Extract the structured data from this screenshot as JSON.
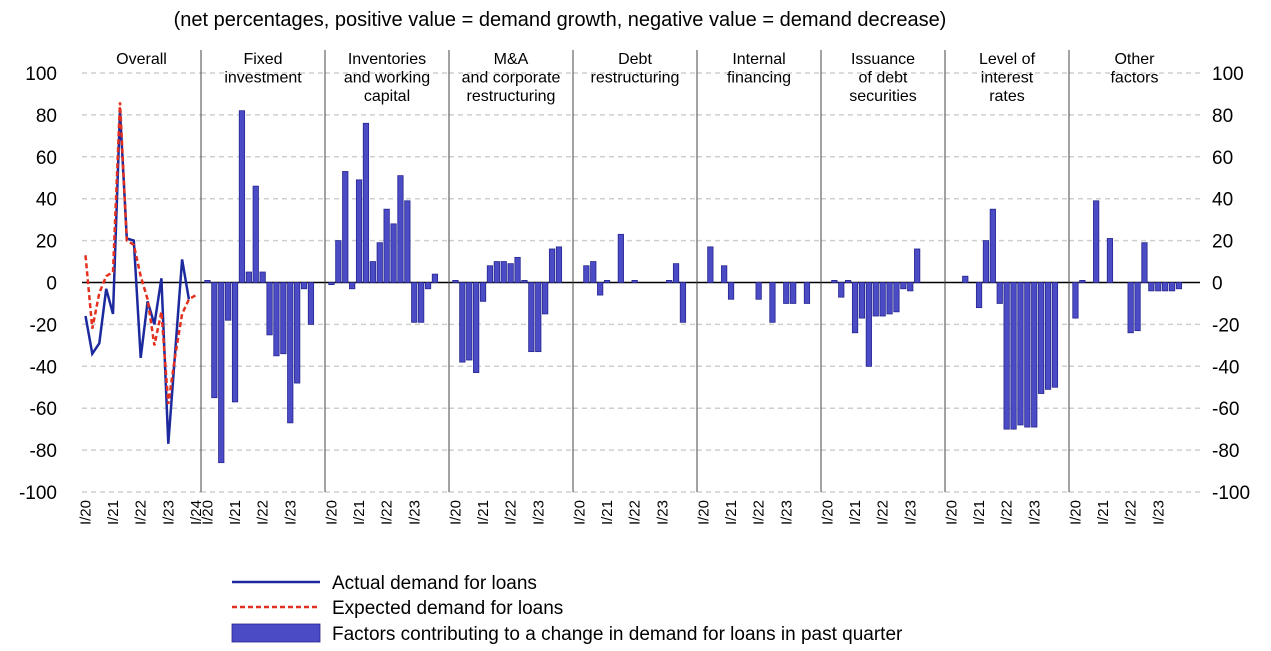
{
  "subtitle": "(net percentages, positive value = demand growth, negative value = demand decrease)",
  "legend_bar": {
    "name": "Factors contributing to a change in demand for loans in past quarter",
    "color": "#4b4bc6"
  },
  "chart_data": [
    {
      "type": "line",
      "title": [
        "Overall"
      ],
      "categories": [
        "I/20",
        null,
        null,
        null,
        "I/21",
        null,
        null,
        null,
        "I/22",
        null,
        null,
        null,
        "I/23",
        null,
        null,
        null,
        "I/24"
      ],
      "series": [
        {
          "name": "Actual demand for loans",
          "color": "#1c2a9e",
          "style": "solid",
          "values": [
            -16,
            -34,
            -29,
            -3,
            -15,
            82,
            21,
            20,
            -36,
            -9,
            -20,
            2,
            -77,
            -33,
            11,
            -8,
            null
          ]
        },
        {
          "name": "Expected demand for loans",
          "color": "#e3301f",
          "style": "dashed",
          "values": [
            13,
            -22,
            -5,
            3,
            5,
            86,
            20,
            18,
            3,
            -8,
            -30,
            -14,
            -58,
            -35,
            -15,
            -8,
            -6
          ]
        }
      ],
      "ylim": [
        -100,
        100
      ],
      "yticks": [
        -100,
        -80,
        -60,
        -40,
        -20,
        0,
        20,
        40,
        60,
        80,
        100
      ],
      "grid": true
    },
    {
      "type": "bar",
      "title": [
        "Fixed",
        "investment"
      ],
      "categories": [
        "I/20",
        null,
        null,
        null,
        "I/21",
        null,
        null,
        null,
        "I/22",
        null,
        null,
        null,
        "I/23",
        null,
        null,
        null
      ],
      "values": [
        1,
        -55,
        -86,
        -18,
        -57,
        82,
        5,
        46,
        5,
        -25,
        -35,
        -34,
        -67,
        -48,
        -3,
        -20
      ],
      "ylim": [
        -100,
        100
      ],
      "yticks": [
        -100,
        -80,
        -60,
        -40,
        -20,
        0,
        20,
        40,
        60,
        80,
        100
      ],
      "grid": true
    },
    {
      "type": "bar",
      "title": [
        "Inventories",
        "and working",
        "capital"
      ],
      "categories": [
        "I/20",
        null,
        null,
        null,
        "I/21",
        null,
        null,
        null,
        "I/22",
        null,
        null,
        null,
        "I/23",
        null,
        null,
        null
      ],
      "values": [
        -1,
        20,
        53,
        -3,
        49,
        76,
        10,
        19,
        35,
        28,
        51,
        39,
        -19,
        -19,
        -3,
        4
      ],
      "ylim": [
        -100,
        100
      ],
      "yticks": [
        -100,
        -80,
        -60,
        -40,
        -20,
        0,
        20,
        40,
        60,
        80,
        100
      ],
      "grid": true
    },
    {
      "type": "bar",
      "title": [
        "M&A",
        "and corporate",
        "restructuring"
      ],
      "categories": [
        "I/20",
        null,
        null,
        null,
        "I/21",
        null,
        null,
        null,
        "I/22",
        null,
        null,
        null,
        "I/23",
        null,
        null,
        null
      ],
      "values": [
        1,
        -38,
        -37,
        -43,
        -9,
        8,
        10,
        10,
        9,
        12,
        1,
        -33,
        -33,
        -15,
        16,
        17
      ],
      "ylim": [
        -100,
        100
      ],
      "yticks": [
        -100,
        -80,
        -60,
        -40,
        -20,
        0,
        20,
        40,
        60,
        80,
        100
      ],
      "grid": true
    },
    {
      "type": "bar",
      "title": [
        "Debt",
        "restructuring"
      ],
      "categories": [
        "I/20",
        null,
        null,
        null,
        "I/21",
        null,
        null,
        null,
        "I/22",
        null,
        null,
        null,
        "I/23",
        null,
        null,
        null
      ],
      "values": [
        0,
        8,
        10,
        -6,
        1,
        0,
        23,
        0,
        1,
        0,
        0,
        0,
        0,
        1,
        9,
        -19
      ],
      "ylim": [
        -100,
        100
      ],
      "yticks": [
        -100,
        -80,
        -60,
        -40,
        -20,
        0,
        20,
        40,
        60,
        80,
        100
      ],
      "grid": true
    },
    {
      "type": "bar",
      "title": [
        "Internal",
        "financing"
      ],
      "categories": [
        "I/20",
        null,
        null,
        null,
        "I/21",
        null,
        null,
        null,
        "I/22",
        null,
        null,
        null,
        "I/23",
        null,
        null,
        null
      ],
      "values": [
        0,
        17,
        0,
        8,
        -8,
        0,
        0,
        0,
        -8,
        0,
        -19,
        0,
        -10,
        -10,
        0,
        -10
      ],
      "ylim": [
        -100,
        100
      ],
      "yticks": [
        -100,
        -80,
        -60,
        -40,
        -20,
        0,
        20,
        40,
        60,
        80,
        100
      ],
      "grid": true
    },
    {
      "type": "bar",
      "title": [
        "Issuance",
        "of debt",
        "securities"
      ],
      "categories": [
        "I/20",
        null,
        null,
        null,
        "I/21",
        null,
        null,
        null,
        "I/22",
        null,
        null,
        null,
        "I/23",
        null,
        null,
        null
      ],
      "values": [
        0,
        1,
        -7,
        1,
        -24,
        -17,
        -40,
        -16,
        -16,
        -15,
        -14,
        -3,
        -4,
        16,
        0,
        0
      ],
      "ylim": [
        -100,
        100
      ],
      "yticks": [
        -100,
        -80,
        -60,
        -40,
        -20,
        0,
        20,
        40,
        60,
        80,
        100
      ],
      "grid": true
    },
    {
      "type": "bar",
      "title": [
        "Level of",
        "interest",
        "rates"
      ],
      "categories": [
        "I/20",
        null,
        null,
        null,
        "I/21",
        null,
        null,
        null,
        "I/22",
        null,
        null,
        null,
        "I/23",
        null,
        null,
        null
      ],
      "values": [
        0,
        0,
        3,
        0,
        -12,
        20,
        35,
        -10,
        -70,
        -70,
        -68,
        -69,
        -69,
        -53,
        -51,
        -50
      ],
      "ylim": [
        -100,
        100
      ],
      "yticks": [
        -100,
        -80,
        -60,
        -40,
        -20,
        0,
        20,
        40,
        60,
        80,
        100
      ],
      "grid": true
    },
    {
      "type": "bar",
      "title": [
        "Other",
        "factors"
      ],
      "categories": [
        "I/20",
        null,
        null,
        null,
        "I/21",
        null,
        null,
        null,
        "I/22",
        null,
        null,
        null,
        "I/23",
        null,
        null,
        null
      ],
      "values": [
        -17,
        1,
        0,
        39,
        0,
        21,
        0,
        0,
        -24,
        -23,
        19,
        -4,
        -4,
        -4,
        -4,
        -3
      ],
      "ylim": [
        -100,
        100
      ],
      "yticks": [
        -100,
        -80,
        -60,
        -40,
        -20,
        0,
        20,
        40,
        60,
        80,
        100
      ],
      "grid": true
    }
  ]
}
